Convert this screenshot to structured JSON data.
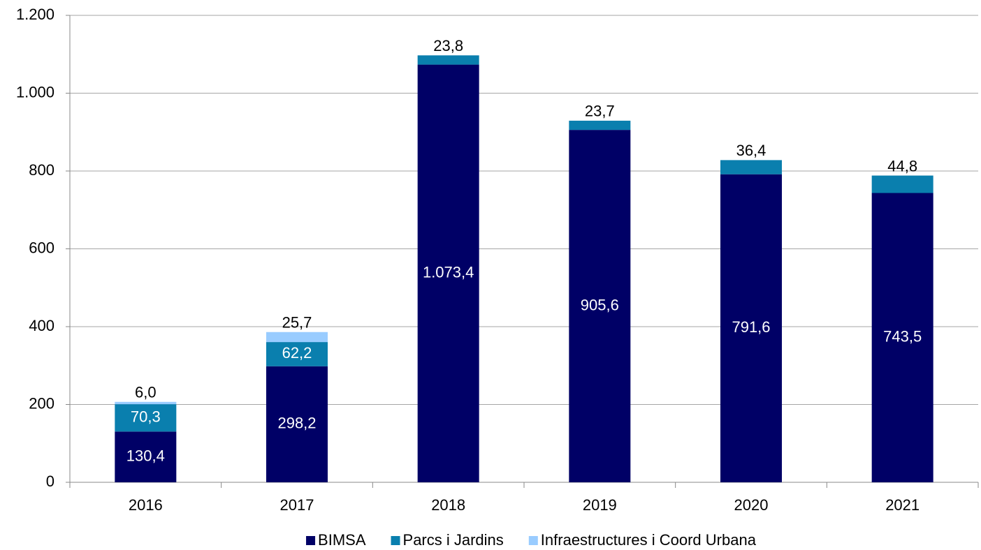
{
  "chart_data": {
    "type": "bar",
    "stacked": true,
    "categories": [
      "2016",
      "2017",
      "2018",
      "2019",
      "2020",
      "2021"
    ],
    "series": [
      {
        "name": "BIMSA",
        "color": "#000066",
        "values": [
          130.4,
          298.2,
          1073.4,
          905.6,
          791.6,
          743.5
        ],
        "value_labels": [
          "130,4",
          "298,2",
          "1.073,4",
          "905,6",
          "791,6",
          "743,5"
        ]
      },
      {
        "name": "Parcs i Jardins",
        "color": "#0a7fae",
        "values": [
          70.3,
          62.2,
          23.8,
          23.7,
          36.4,
          44.8
        ],
        "value_labels": [
          "70,3",
          "62,2",
          "23,8",
          "23,7",
          "36,4",
          "44,8"
        ]
      },
      {
        "name": "Infraestructures i Coord Urbana",
        "color": "#99ccff",
        "values": [
          6.0,
          25.7,
          null,
          null,
          null,
          null
        ],
        "value_labels": [
          "6,0",
          "25,7",
          null,
          null,
          null,
          null
        ]
      }
    ],
    "ylim": [
      0,
      1200
    ],
    "yticks": [
      0,
      200,
      400,
      600,
      800,
      {
        "value": 1000,
        "label": "1.000"
      },
      {
        "value": 1200,
        "label": "1.200"
      }
    ],
    "grid": true,
    "legend": "bottom"
  }
}
